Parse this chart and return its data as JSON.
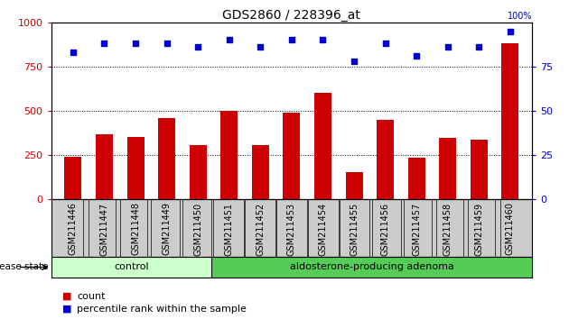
{
  "title": "GDS2860 / 228396_at",
  "samples": [
    "GSM211446",
    "GSM211447",
    "GSM211448",
    "GSM211449",
    "GSM211450",
    "GSM211451",
    "GSM211452",
    "GSM211453",
    "GSM211454",
    "GSM211455",
    "GSM211456",
    "GSM211457",
    "GSM211458",
    "GSM211459",
    "GSM211460"
  ],
  "counts": [
    240,
    370,
    355,
    460,
    305,
    500,
    305,
    490,
    600,
    155,
    450,
    235,
    345,
    335,
    880
  ],
  "percentiles": [
    83,
    88,
    88,
    88,
    86,
    90,
    86,
    90,
    90,
    78,
    88,
    81,
    86,
    86,
    95
  ],
  "ylim_left": [
    0,
    1000
  ],
  "ylim_right": [
    0,
    100
  ],
  "yticks_left": [
    0,
    250,
    500,
    750,
    1000
  ],
  "yticks_right": [
    0,
    25,
    50,
    75,
    100
  ],
  "bar_color": "#cc0000",
  "dot_color": "#0000cc",
  "bg_color": "#ffffff",
  "tick_box_color": "#cccccc",
  "control_color": "#ccffcc",
  "adenoma_color": "#55cc55",
  "control_label": "control",
  "adenoma_label": "aldosterone-producing adenoma",
  "disease_label": "disease state",
  "legend_count_label": "count",
  "legend_pct_label": "percentile rank within the sample",
  "n_control": 5,
  "n_total": 15,
  "pct_suffix": "100%"
}
